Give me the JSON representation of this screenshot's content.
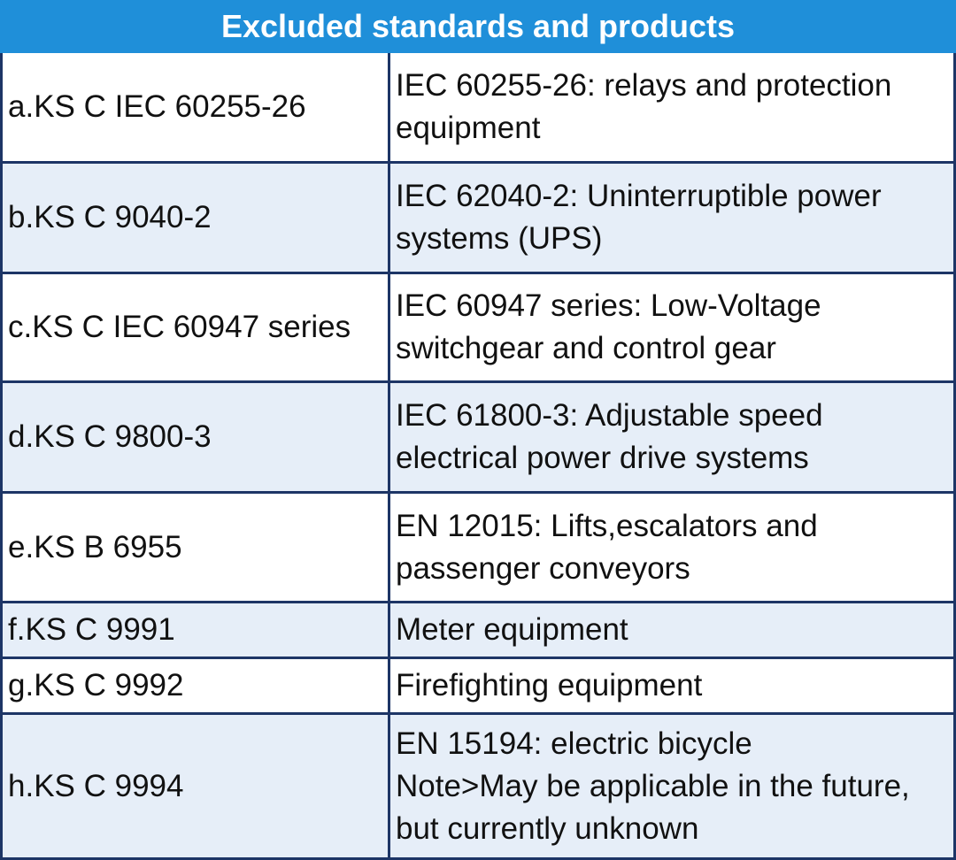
{
  "table": {
    "title": "Excluded standards and products",
    "rows": [
      [
        [
          "a.KS C IEC 60255-26"
        ],
        [
          "IEC 60255-26: relays and protection",
          "equipment"
        ]
      ],
      [
        [
          "b.KS C 9040-2"
        ],
        [
          "IEC 62040-2: Uninterruptible power",
          "systems (UPS)"
        ]
      ],
      [
        [
          "c.KS C IEC 60947 series"
        ],
        [
          "IEC 60947 series: Low-Voltage",
          "switchgear and control gear"
        ]
      ],
      [
        [
          "d.KS C 9800-3"
        ],
        [
          "IEC 61800-3: Adjustable speed",
          "electrical power drive systems"
        ]
      ],
      [
        [
          "e.KS B 6955"
        ],
        [
          "EN 12015: Lifts,escalators and",
          "passenger conveyors"
        ]
      ],
      [
        [
          "f.KS C 9991"
        ],
        [
          "Meter equipment"
        ]
      ],
      [
        [
          "g.KS C 9992"
        ],
        [
          "Firefighting equipment"
        ]
      ],
      [
        [
          "h.KS C 9994"
        ],
        [
          "EN 15194: electric bicycle",
          "Note>May be applicable in the future,",
          "but currently unknown"
        ]
      ]
    ]
  }
}
